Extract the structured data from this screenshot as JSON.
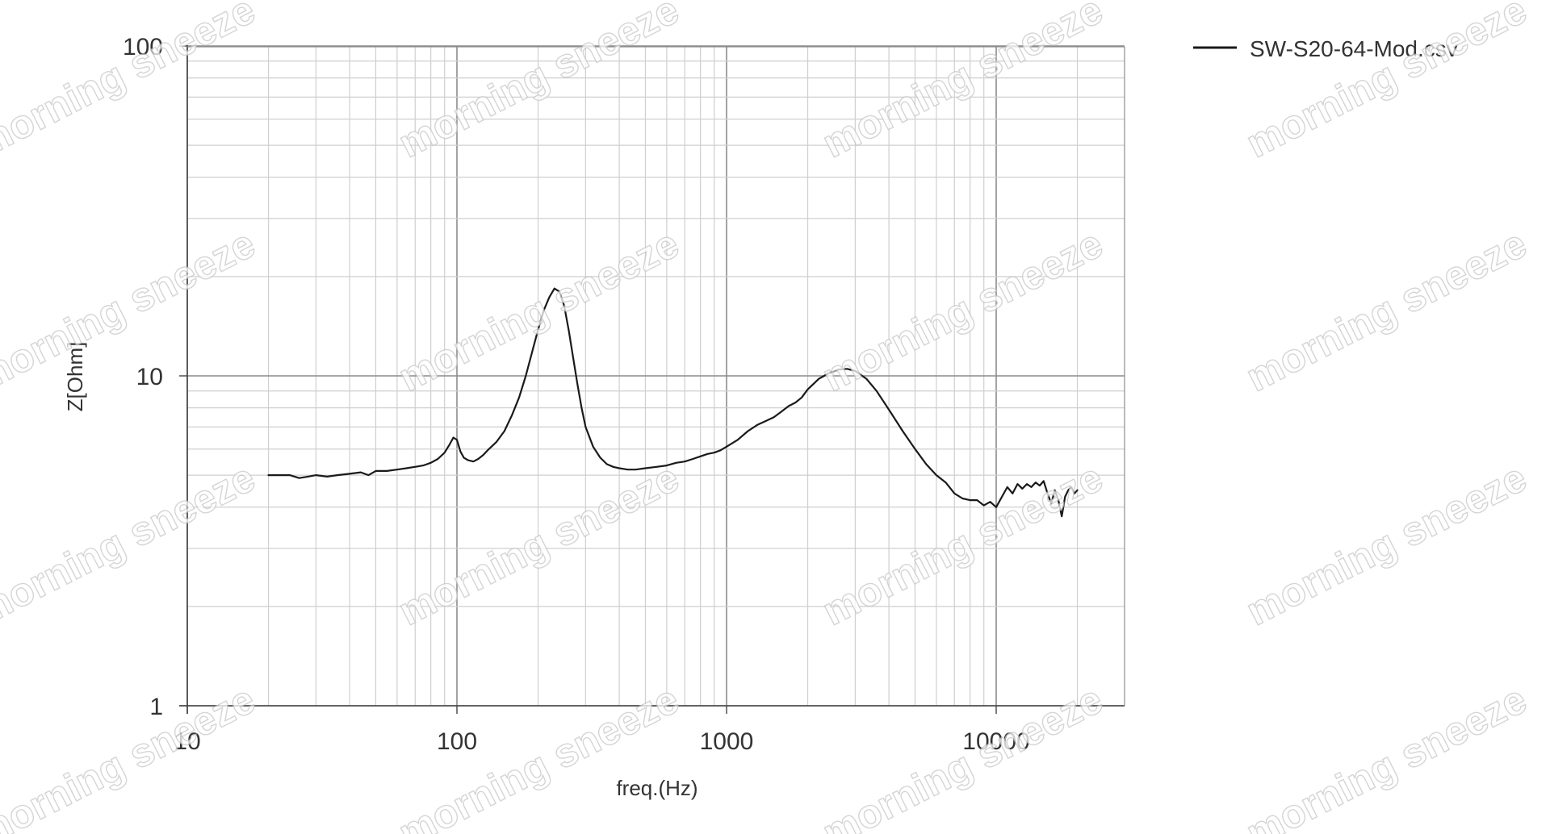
{
  "chart_data": {
    "type": "line",
    "xscale": "log",
    "yscale": "log",
    "xlim": [
      10,
      30000
    ],
    "ylim": [
      1,
      100
    ],
    "xlabel": "freq.(Hz)",
    "ylabel": "Z[Ohm]",
    "x_ticks": [
      "10",
      "100",
      "1000",
      "10000"
    ],
    "y_ticks": [
      "100",
      "10",
      "1"
    ],
    "grid": true,
    "legend_position": "top-right, outside plot",
    "line_color": "#1a1a1a",
    "grid_color": "#cfcfcf",
    "major_grid_color": "#8c8c8c",
    "series": [
      {
        "name": "SW-S20-64-Mod.csv",
        "x": [
          20,
          22,
          24,
          26,
          28,
          30,
          33,
          36,
          40,
          44,
          47,
          50,
          55,
          60,
          65,
          70,
          75,
          80,
          85,
          90,
          94,
          97,
          100,
          103,
          106,
          110,
          115,
          120,
          125,
          130,
          140,
          150,
          160,
          170,
          180,
          190,
          200,
          210,
          220,
          230,
          240,
          250,
          260,
          270,
          280,
          290,
          300,
          320,
          340,
          360,
          380,
          400,
          430,
          460,
          500,
          550,
          600,
          650,
          700,
          750,
          800,
          850,
          900,
          950,
          1000,
          1100,
          1200,
          1300,
          1400,
          1500,
          1600,
          1700,
          1800,
          1900,
          2000,
          2200,
          2400,
          2600,
          2800,
          3000,
          3300,
          3600,
          4000,
          4500,
          5000,
          5500,
          6000,
          6500,
          7000,
          7500,
          8000,
          8500,
          9000,
          9500,
          10000,
          10500,
          11000,
          11500,
          12000,
          12500,
          13000,
          13500,
          14000,
          14500,
          15000,
          15500,
          16000,
          16500,
          17000,
          17500,
          18000,
          18500,
          19000,
          19500,
          20000
        ],
        "y": [
          5.0,
          5.0,
          5.0,
          4.9,
          4.95,
          5.0,
          4.95,
          5.0,
          5.05,
          5.1,
          5.0,
          5.15,
          5.15,
          5.2,
          5.25,
          5.3,
          5.35,
          5.45,
          5.6,
          5.85,
          6.2,
          6.5,
          6.4,
          5.9,
          5.65,
          5.55,
          5.5,
          5.6,
          5.75,
          5.95,
          6.3,
          6.8,
          7.6,
          8.6,
          10.0,
          11.8,
          13.8,
          15.8,
          17.3,
          18.4,
          18.0,
          16.3,
          13.7,
          11.3,
          9.4,
          8.0,
          7.0,
          6.1,
          5.65,
          5.4,
          5.3,
          5.25,
          5.2,
          5.2,
          5.25,
          5.3,
          5.35,
          5.45,
          5.5,
          5.6,
          5.7,
          5.8,
          5.85,
          5.95,
          6.1,
          6.4,
          6.8,
          7.1,
          7.3,
          7.5,
          7.8,
          8.1,
          8.3,
          8.6,
          9.1,
          9.8,
          10.2,
          10.45,
          10.5,
          10.35,
          9.8,
          9.0,
          7.9,
          6.8,
          6.0,
          5.4,
          5.0,
          4.75,
          4.4,
          4.25,
          4.2,
          4.2,
          4.05,
          4.15,
          4.0,
          4.3,
          4.6,
          4.4,
          4.7,
          4.55,
          4.7,
          4.6,
          4.75,
          4.65,
          4.8,
          4.4,
          4.1,
          4.5,
          4.2,
          3.75,
          4.3,
          4.5,
          4.6,
          4.4,
          4.5
        ]
      }
    ]
  },
  "watermark": {
    "text": "morning sneeze",
    "color": "#c8c8c8"
  }
}
